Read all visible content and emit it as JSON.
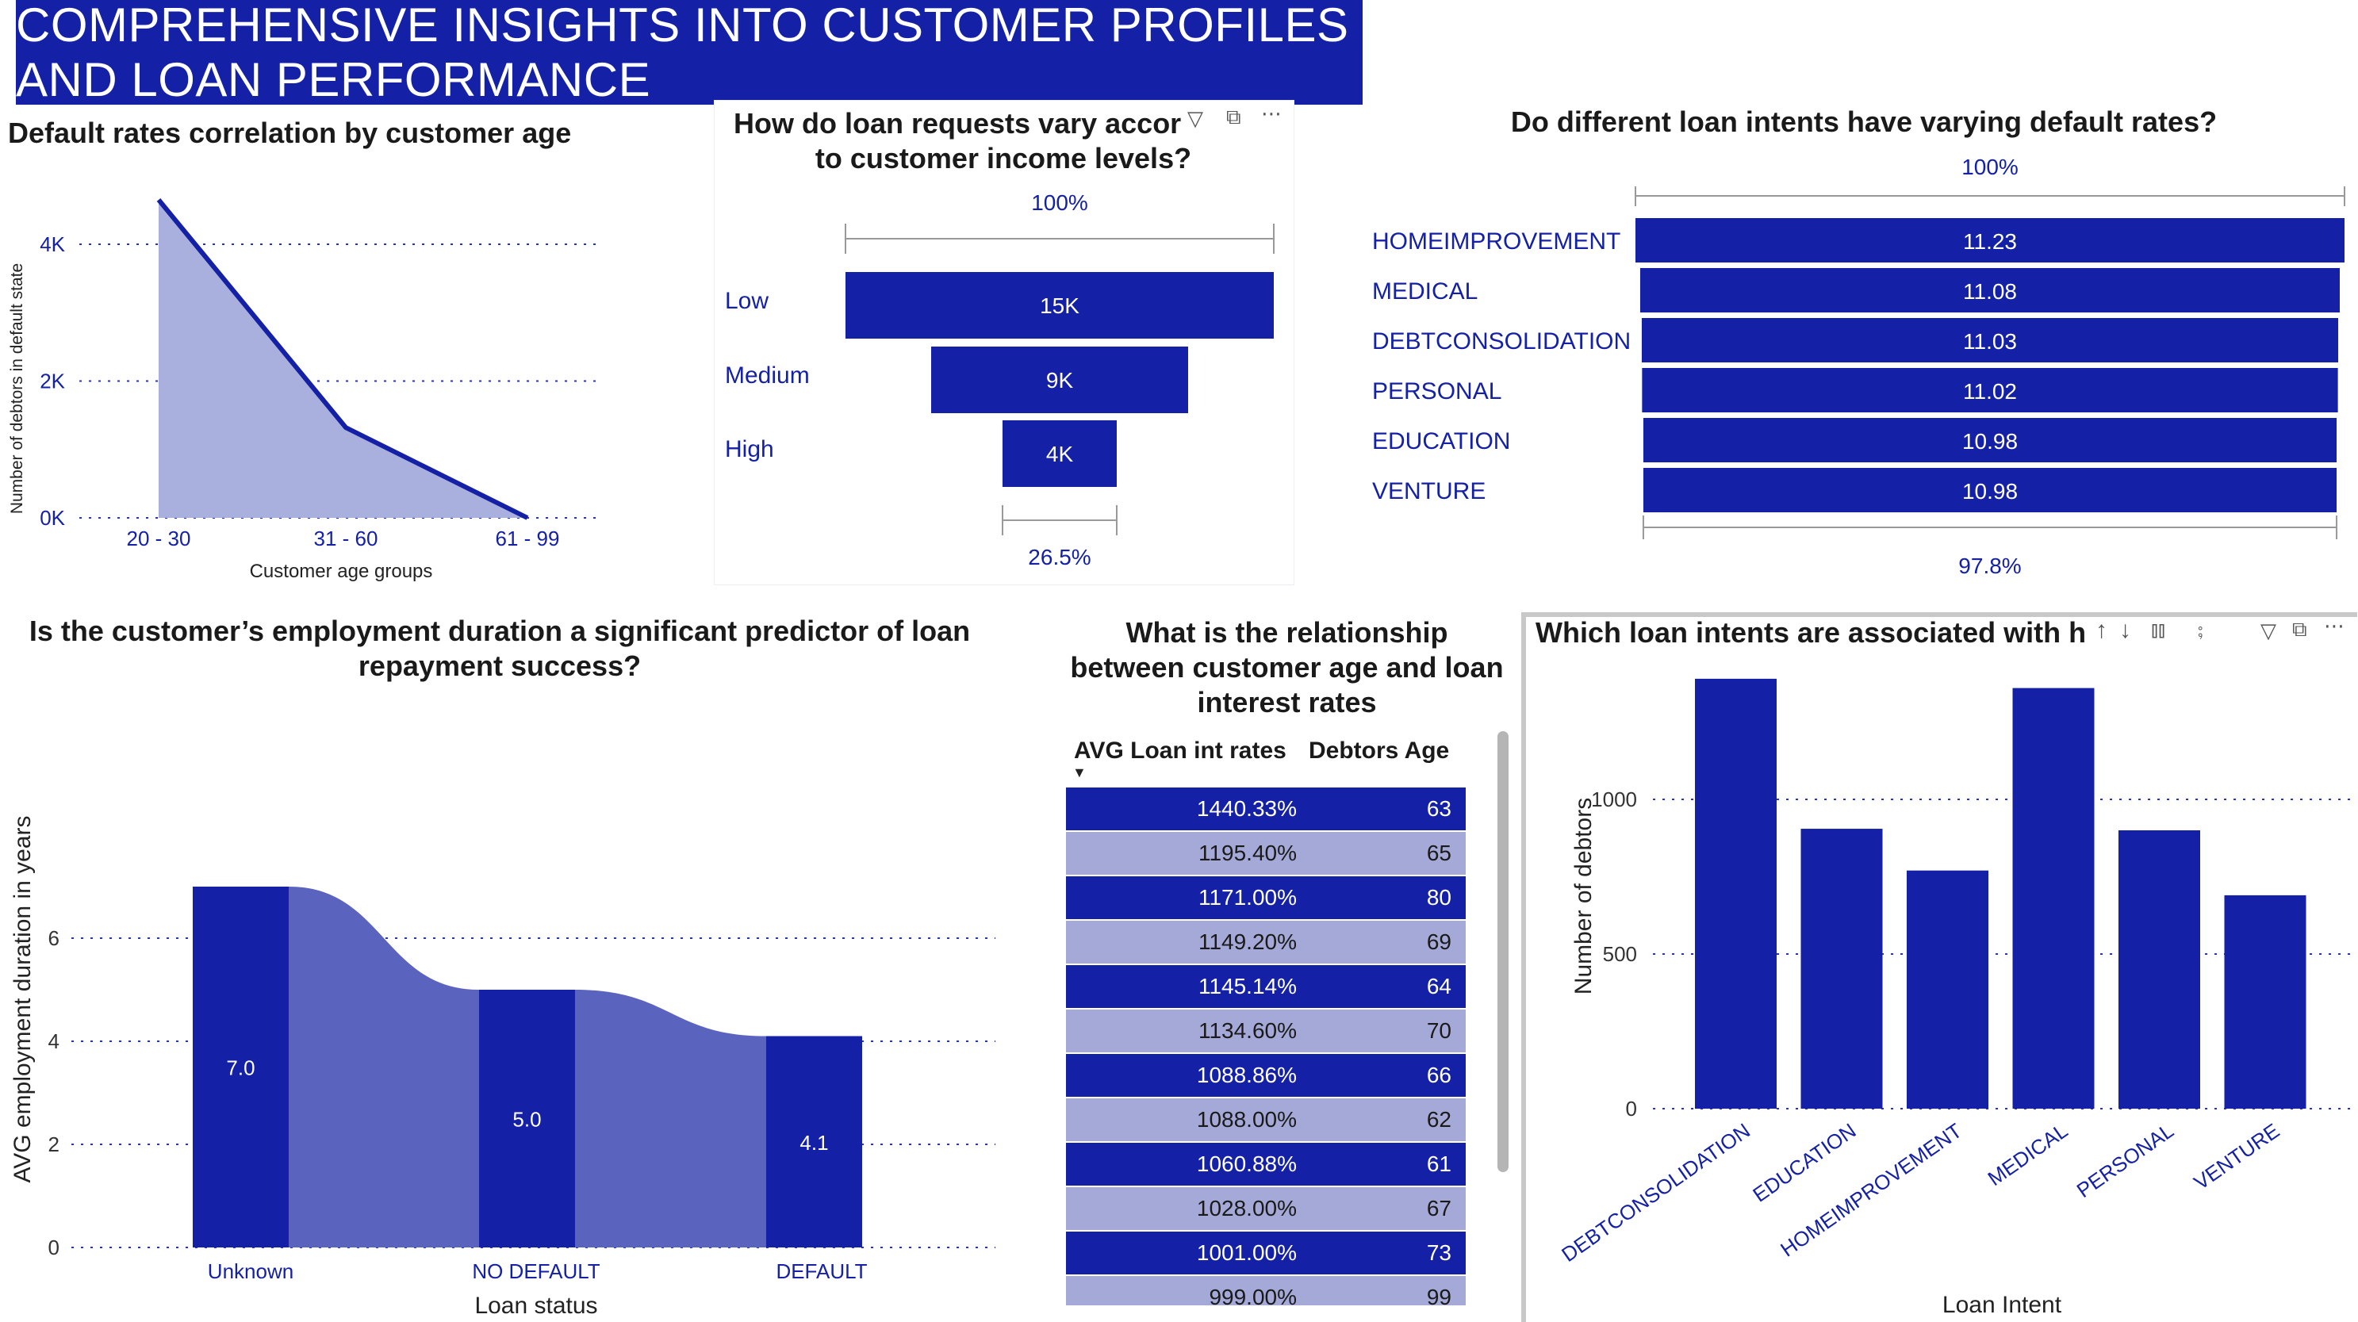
{
  "header": {
    "title": "COMPREHENSIVE INSIGHTS INTO CUSTOMER PROFILES AND LOAN PERFORMANCE"
  },
  "colors": {
    "primary": "#1421a6",
    "area_fill": "#aab0dd",
    "ribbon": "#5a63bd",
    "table_light": "#a5a9d8"
  },
  "age_chart": {
    "title": "Default rates correlation by customer age",
    "chart_data": {
      "type": "area",
      "categories": [
        "20 - 30",
        "31 - 60",
        "61 - 99"
      ],
      "values": [
        4650,
        1320,
        0
      ],
      "xlabel": "Customer age groups",
      "ylabel": "Number of debtors in default state",
      "y_ticks": [
        "0K",
        "2K",
        "4K"
      ],
      "ylim": [
        0,
        4000
      ]
    }
  },
  "funnel": {
    "title_line1": "How do loan requests vary accor",
    "title_line2": "to customer income levels?",
    "top_pct": "100%",
    "bottom_pct": "26.5%",
    "chart_data": {
      "type": "bar",
      "categories": [
        "Low",
        "Medium",
        "High"
      ],
      "values": [
        15000,
        9000,
        4000
      ],
      "value_labels": [
        "15K",
        "9K",
        "4K"
      ]
    },
    "icons": [
      "filter-icon",
      "focus-mode-icon",
      "more-options-icon"
    ]
  },
  "intent_funnel": {
    "title": "Do different loan intents have varying default rates?",
    "top_pct": "100%",
    "bottom_pct": "97.8%",
    "chart_data": {
      "type": "bar",
      "categories": [
        "HOMEIMPROVEMENT",
        "MEDICAL",
        "DEBTCONSOLIDATION",
        "PERSONAL",
        "EDUCATION",
        "VENTURE"
      ],
      "values": [
        11.23,
        11.08,
        11.03,
        11.02,
        10.98,
        10.98
      ],
      "value_labels": [
        "11.23",
        "11.08",
        "11.03",
        "11.02",
        "10.98",
        "10.98"
      ]
    }
  },
  "employment": {
    "title_line1": "Is the customer’s employment duration a significant predictor of loan",
    "title_line2": "repayment success?",
    "chart_data": {
      "type": "bar",
      "categories": [
        "Unknown",
        "NO DEFAULT",
        "DEFAULT"
      ],
      "values": [
        7.0,
        5.0,
        4.1
      ],
      "value_labels": [
        "7.0",
        "5.0",
        "4.1"
      ],
      "xlabel": "Loan status",
      "ylabel": "AVG employment duration in years",
      "y_ticks": [
        "0",
        "2",
        "4",
        "6"
      ],
      "ylim": [
        0,
        7
      ]
    }
  },
  "rates_table": {
    "title_line1": "What is the relationship",
    "title_line2": "between customer age and loan",
    "title_line3": "interest rates",
    "col1": "AVG Loan int rates",
    "col2": "Debtors Age",
    "sort_icon": "sort-descending-icon",
    "chart_data": {
      "type": "table",
      "columns": [
        "AVG Loan int rates",
        "Debtors Age"
      ],
      "rows": [
        [
          "1440.33%",
          "63"
        ],
        [
          "1195.40%",
          "65"
        ],
        [
          "1171.00%",
          "80"
        ],
        [
          "1149.20%",
          "69"
        ],
        [
          "1145.14%",
          "64"
        ],
        [
          "1134.60%",
          "70"
        ],
        [
          "1088.86%",
          "66"
        ],
        [
          "1088.00%",
          "62"
        ],
        [
          "1060.88%",
          "61"
        ],
        [
          "1028.00%",
          "67"
        ],
        [
          "1001.00%",
          "73"
        ],
        [
          "999.00%",
          "99"
        ]
      ]
    }
  },
  "intent_bars": {
    "title": "Which loan intents are associated with h",
    "chart_data": {
      "type": "bar",
      "categories": [
        "DEBTCONSOLIDATION",
        "EDUCATION",
        "HOMEIMPROVEMENT",
        "MEDICAL",
        "PERSONAL",
        "VENTURE"
      ],
      "values": [
        1390,
        905,
        770,
        1360,
        900,
        690
      ],
      "xlabel": "Loan Intent",
      "ylabel": "Number of debtors",
      "y_ticks": [
        "0",
        "500",
        "1000"
      ],
      "ylim": [
        0,
        1450
      ]
    },
    "icons": [
      "sort-ascending-icon",
      "sort-descending-icon",
      "expand-hierarchy-icon",
      "drill-down-icon",
      "filter-icon",
      "focus-mode-icon",
      "more-options-icon"
    ]
  }
}
